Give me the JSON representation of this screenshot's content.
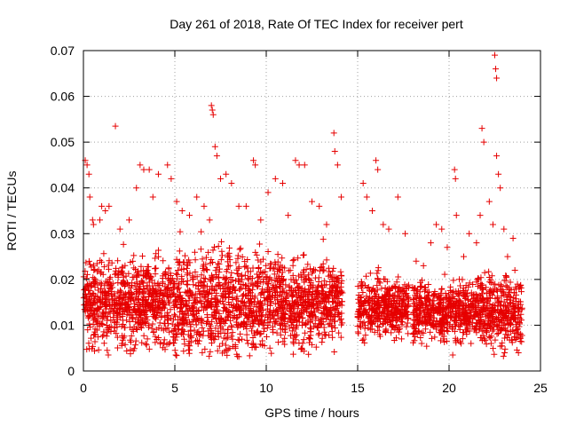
{
  "chart_data": {
    "type": "scatter",
    "title": "Day 261 of 2018, Rate Of TEC Index for receiver pert",
    "xlabel": "GPS time / hours",
    "ylabel": "ROTI / TECUs",
    "xlim": [
      0,
      25
    ],
    "ylim": [
      0,
      0.07
    ],
    "xticks": [
      0,
      5,
      10,
      15,
      20,
      25
    ],
    "xtick_labels": [
      "0",
      "5",
      "10",
      "15",
      "20",
      "25"
    ],
    "yticks": [
      0,
      0.01,
      0.02,
      0.03,
      0.04,
      0.05,
      0.06,
      0.07
    ],
    "ytick_labels": [
      "0",
      "0.01",
      "0.02",
      "0.03",
      "0.04",
      "0.05",
      "0.06",
      "0.07"
    ],
    "grid": true,
    "marker": "+",
    "color": "#e60000",
    "density_profile": [
      {
        "x_range": [
          0.0,
          5.0
        ],
        "y_median": 0.015,
        "y_spread": 0.006,
        "max_y": 0.046
      },
      {
        "x_range": [
          5.0,
          10.0
        ],
        "y_median": 0.015,
        "y_spread": 0.007,
        "max_y": 0.058
      },
      {
        "x_range": [
          10.0,
          14.2
        ],
        "y_median": 0.015,
        "y_spread": 0.006,
        "max_y": 0.052
      },
      {
        "x_range": [
          15.0,
          17.8
        ],
        "y_median": 0.014,
        "y_spread": 0.004,
        "max_y": 0.046
      },
      {
        "x_range": [
          18.0,
          21.5
        ],
        "y_median": 0.013,
        "y_spread": 0.004,
        "max_y": 0.044
      },
      {
        "x_range": [
          21.5,
          24.0
        ],
        "y_median": 0.013,
        "y_spread": 0.005,
        "max_y": 0.069
      }
    ],
    "series": [
      {
        "points": [
          [
            0.1,
            0.046
          ],
          [
            0.2,
            0.045
          ],
          [
            0.3,
            0.043
          ],
          [
            0.35,
            0.038
          ],
          [
            0.5,
            0.033
          ],
          [
            0.55,
            0.032
          ],
          [
            0.9,
            0.033
          ],
          [
            1.0,
            0.036
          ],
          [
            1.2,
            0.035
          ],
          [
            1.4,
            0.036
          ],
          [
            1.75,
            0.0535
          ],
          [
            2.0,
            0.031
          ],
          [
            2.5,
            0.033
          ],
          [
            2.9,
            0.04
          ],
          [
            3.1,
            0.045
          ],
          [
            3.3,
            0.044
          ],
          [
            3.6,
            0.044
          ],
          [
            3.8,
            0.038
          ],
          [
            4.1,
            0.043
          ],
          [
            4.6,
            0.045
          ],
          [
            4.8,
            0.042
          ],
          [
            5.1,
            0.037
          ],
          [
            5.4,
            0.035
          ],
          [
            5.8,
            0.034
          ],
          [
            6.2,
            0.038
          ],
          [
            6.6,
            0.036
          ],
          [
            6.9,
            0.033
          ],
          [
            7.0,
            0.058
          ],
          [
            7.05,
            0.057
          ],
          [
            7.1,
            0.056
          ],
          [
            7.2,
            0.049
          ],
          [
            7.3,
            0.047
          ],
          [
            7.5,
            0.042
          ],
          [
            7.8,
            0.043
          ],
          [
            8.1,
            0.041
          ],
          [
            8.5,
            0.036
          ],
          [
            8.9,
            0.036
          ],
          [
            9.3,
            0.046
          ],
          [
            9.4,
            0.045
          ],
          [
            9.7,
            0.033
          ],
          [
            10.1,
            0.039
          ],
          [
            10.5,
            0.042
          ],
          [
            10.9,
            0.041
          ],
          [
            11.2,
            0.034
          ],
          [
            11.6,
            0.046
          ],
          [
            11.8,
            0.045
          ],
          [
            12.1,
            0.045
          ],
          [
            12.5,
            0.037
          ],
          [
            12.9,
            0.036
          ],
          [
            13.3,
            0.032
          ],
          [
            13.7,
            0.052
          ],
          [
            13.75,
            0.048
          ],
          [
            13.9,
            0.045
          ],
          [
            14.1,
            0.038
          ],
          [
            15.3,
            0.041
          ],
          [
            15.5,
            0.038
          ],
          [
            15.8,
            0.035
          ],
          [
            16.0,
            0.046
          ],
          [
            16.1,
            0.044
          ],
          [
            16.4,
            0.032
          ],
          [
            16.7,
            0.031
          ],
          [
            17.2,
            0.038
          ],
          [
            17.6,
            0.03
          ],
          [
            18.2,
            0.024
          ],
          [
            18.6,
            0.023
          ],
          [
            19.0,
            0.028
          ],
          [
            19.3,
            0.032
          ],
          [
            19.6,
            0.031
          ],
          [
            19.9,
            0.027
          ],
          [
            20.3,
            0.044
          ],
          [
            20.35,
            0.042
          ],
          [
            20.4,
            0.034
          ],
          [
            20.8,
            0.025
          ],
          [
            21.1,
            0.03
          ],
          [
            21.5,
            0.028
          ],
          [
            21.7,
            0.034
          ],
          [
            21.8,
            0.053
          ],
          [
            21.9,
            0.05
          ],
          [
            22.2,
            0.037
          ],
          [
            22.4,
            0.032
          ],
          [
            22.5,
            0.069
          ],
          [
            22.55,
            0.066
          ],
          [
            22.6,
            0.064
          ],
          [
            22.6,
            0.047
          ],
          [
            22.7,
            0.043
          ],
          [
            22.8,
            0.04
          ],
          [
            23.0,
            0.031
          ],
          [
            23.2,
            0.025
          ],
          [
            23.5,
            0.029
          ],
          [
            23.6,
            0.022
          ],
          [
            0.6,
            0.008
          ],
          [
            1.3,
            0.0045
          ],
          [
            2.1,
            0.006
          ],
          [
            3.5,
            0.007
          ],
          [
            4.4,
            0.006
          ],
          [
            6.5,
            0.004
          ],
          [
            7.6,
            0.006
          ],
          [
            9.0,
            0.006
          ],
          [
            10.2,
            0.005
          ],
          [
            11.5,
            0.006
          ],
          [
            12.4,
            0.007
          ],
          [
            13.2,
            0.008
          ],
          [
            16.2,
            0.008
          ],
          [
            17.4,
            0.007
          ],
          [
            18.5,
            0.006
          ],
          [
            19.7,
            0.007
          ],
          [
            20.2,
            0.0035
          ],
          [
            21.2,
            0.006
          ],
          [
            22.3,
            0.006
          ],
          [
            23.1,
            0.008
          ],
          [
            23.7,
            0.009
          ]
        ]
      }
    ]
  }
}
